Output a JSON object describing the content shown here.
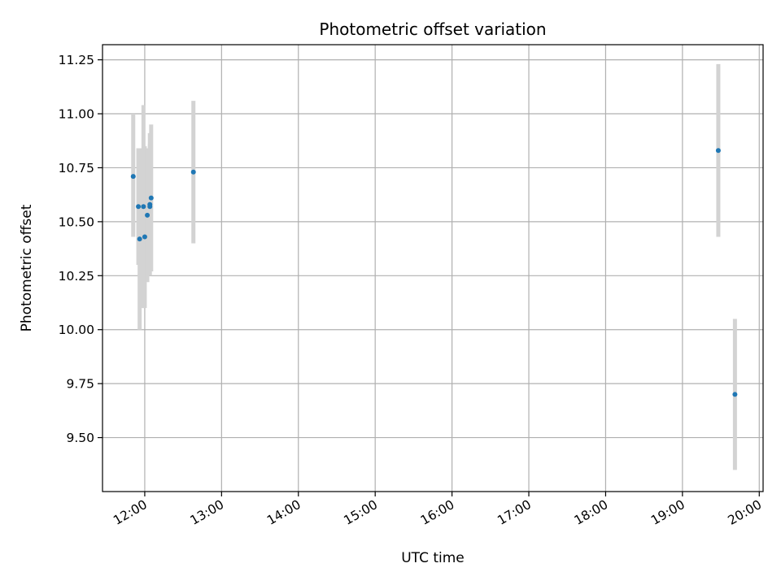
{
  "chart_data": {
    "type": "scatter",
    "title": "Photometric offset variation",
    "xlabel": "UTC time",
    "ylabel": "Photometric offset",
    "x_axis": "time",
    "xlim": [
      "11:27",
      "20:03"
    ],
    "ylim": [
      9.25,
      11.32
    ],
    "x_ticks": [
      "12:00",
      "13:00",
      "14:00",
      "15:00",
      "16:00",
      "17:00",
      "18:00",
      "19:00",
      "20:00"
    ],
    "y_ticks": [
      9.5,
      9.75,
      10.0,
      10.25,
      10.5,
      10.75,
      11.0,
      11.25
    ],
    "y_tick_labels": [
      "9.50",
      "9.75",
      "10.00",
      "10.25",
      "10.50",
      "10.75",
      "11.00",
      "11.25"
    ],
    "grid": true,
    "point_color": "#1f77b4",
    "errorbar_color": "#d3d3d3",
    "points": [
      {
        "x": "11:51",
        "y": 10.71,
        "yerr_low": 10.43,
        "yerr_high": 11.0
      },
      {
        "x": "11:55",
        "y": 10.57,
        "yerr_low": 10.3,
        "yerr_high": 10.84
      },
      {
        "x": "11:56",
        "y": 10.42,
        "yerr_low": 10.0,
        "yerr_high": 10.84
      },
      {
        "x": "11:59",
        "y": 10.57,
        "yerr_low": 10.1,
        "yerr_high": 11.04
      },
      {
        "x": "12:00",
        "y": 10.43,
        "yerr_low": 10.1,
        "yerr_high": 10.85
      },
      {
        "x": "12:02",
        "y": 10.53,
        "yerr_low": 10.22,
        "yerr_high": 10.84
      },
      {
        "x": "12:04",
        "y": 10.58,
        "yerr_low": 10.25,
        "yerr_high": 10.91
      },
      {
        "x": "12:04",
        "y": 10.57,
        "yerr_low": 10.28,
        "yerr_high": 10.86
      },
      {
        "x": "12:05",
        "y": 10.61,
        "yerr_low": 10.27,
        "yerr_high": 10.95
      },
      {
        "x": "12:38",
        "y": 10.73,
        "yerr_low": 10.4,
        "yerr_high": 11.06
      },
      {
        "x": "19:28",
        "y": 10.83,
        "yerr_low": 10.43,
        "yerr_high": 11.23
      },
      {
        "x": "19:41",
        "y": 9.7,
        "yerr_low": 9.35,
        "yerr_high": 10.05
      }
    ]
  }
}
